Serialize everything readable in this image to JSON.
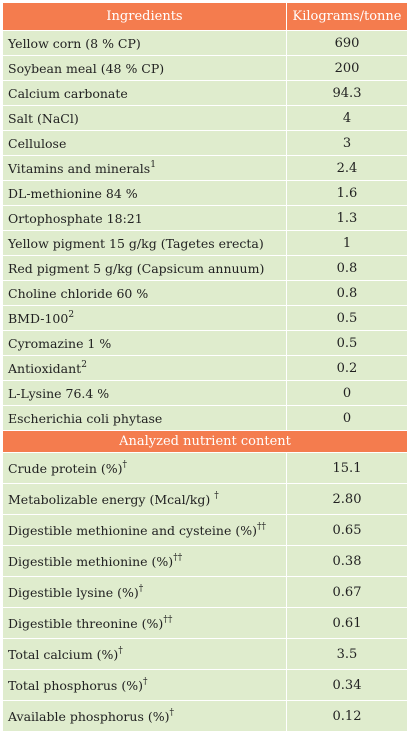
{
  "header": {
    "col1": "Ingredients",
    "col2": "Kilograms/tonne"
  },
  "ingredients": [
    {
      "name": "Yellow corn (8 % CP)",
      "sup": "",
      "value": "690"
    },
    {
      "name": "Soybean meal (48 % CP)",
      "sup": "",
      "value": "200"
    },
    {
      "name": "Calcium carbonate",
      "sup": "",
      "value": "94.3"
    },
    {
      "name": "Salt (NaCl)",
      "sup": "",
      "value": "4"
    },
    {
      "name": "Cellulose",
      "sup": "",
      "value": "3"
    },
    {
      "name": "Vitamins and minerals",
      "sup": "1",
      "value": "2.4"
    },
    {
      "name": "DL-methionine 84 %",
      "sup": "",
      "value": "1.6"
    },
    {
      "name": "Ortophosphate 18:21",
      "sup": "",
      "value": "1.3"
    },
    {
      "name": "Yellow pigment 15 g/kg (Tagetes erecta)",
      "sup": "",
      "value": "1"
    },
    {
      "name": "Red pigment 5 g/kg (Capsicum annuum)",
      "sup": "",
      "value": "0.8"
    },
    {
      "name": "Choline chloride 60 %",
      "sup": "",
      "value": "0.8"
    },
    {
      "name": "BMD-100",
      "sup": "2",
      "value": "0.5"
    },
    {
      "name": "Cyromazine 1 %",
      "sup": "",
      "value": "0.5"
    },
    {
      "name": "Antioxidant",
      "sup": "2",
      "value": "0.2"
    },
    {
      "name": "L-Lysine 76.4 %",
      "sup": "",
      "value": "0"
    },
    {
      "name": "Escherichia coli phytase",
      "sup": "",
      "value": "0"
    }
  ],
  "section": {
    "title": "Analyzed nutrient content"
  },
  "nutrients": [
    {
      "name": "Crude protein (%)",
      "sup": "†",
      "value": "15.1"
    },
    {
      "name": "Metabolizable energy (Mcal/kg) ",
      "sup": "†",
      "value": "2.80"
    },
    {
      "name": "Digestible methionine and cysteine (%)",
      "sup": "††",
      "value": "0.65"
    },
    {
      "name": "Digestible methionine (%)",
      "sup": "††",
      "value": "0.38"
    },
    {
      "name": "Digestible lysine (%)",
      "sup": "†",
      "value": "0.67"
    },
    {
      "name": "Digestible threonine (%)",
      "sup": "††",
      "value": "0.61"
    },
    {
      "name": "Total calcium (%)",
      "sup": "†",
      "value": "3.5"
    },
    {
      "name": "Total phosphorus (%)",
      "sup": "†",
      "value": "0.34"
    },
    {
      "name": "Available phosphorus (%)",
      "sup": "†",
      "value": "0.12"
    }
  ],
  "colors": {
    "header_bg": "#f47c4e",
    "row_bg": "#dfeccd",
    "text": "#222222"
  }
}
